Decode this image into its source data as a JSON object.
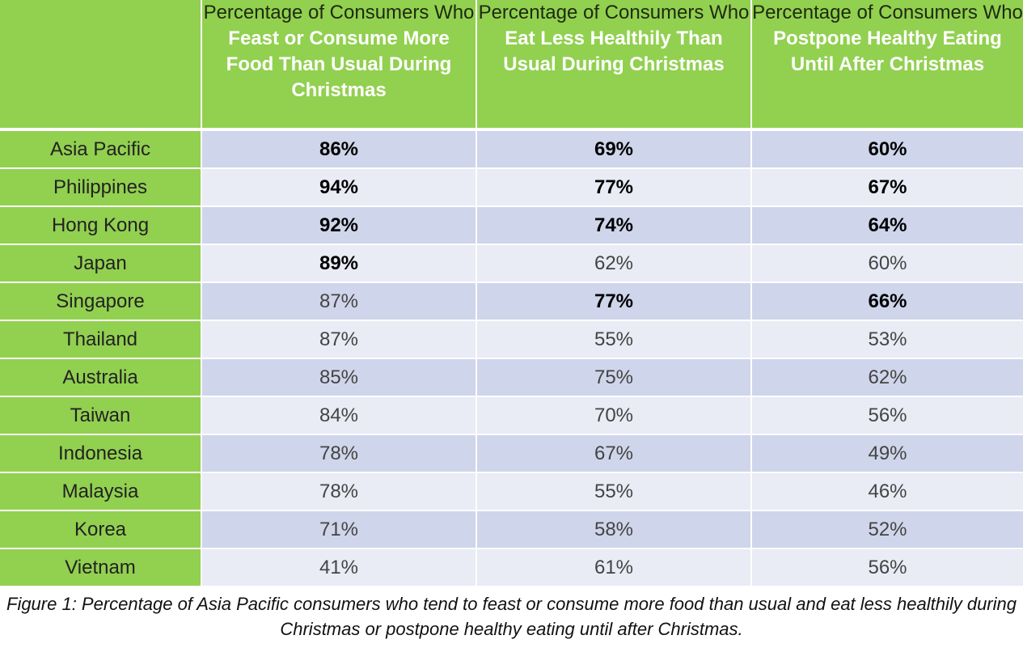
{
  "chart_data": {
    "type": "table",
    "columns": [
      {
        "prefix": "Percentage of Consumers Who",
        "label": "Feast or Consume More Food Than Usual During Christmas"
      },
      {
        "prefix": "Percentage of Consumers Who",
        "label": "Eat Less Healthily Than Usual During Christmas"
      },
      {
        "prefix": "Percentage of Consumers Who",
        "label": "Postpone Healthy Eating Until After Christmas"
      }
    ],
    "rows": [
      {
        "region": "Asia Pacific",
        "values": [
          "86%",
          "69%",
          "60%"
        ],
        "bold": [
          true,
          true,
          true
        ]
      },
      {
        "region": "Philippines",
        "values": [
          "94%",
          "77%",
          "67%"
        ],
        "bold": [
          true,
          true,
          true
        ]
      },
      {
        "region": "Hong Kong",
        "values": [
          "92%",
          "74%",
          "64%"
        ],
        "bold": [
          true,
          true,
          true
        ]
      },
      {
        "region": "Japan",
        "values": [
          "89%",
          "62%",
          "60%"
        ],
        "bold": [
          true,
          false,
          false
        ]
      },
      {
        "region": "Singapore",
        "values": [
          "87%",
          "77%",
          "66%"
        ],
        "bold": [
          false,
          true,
          true
        ]
      },
      {
        "region": "Thailand",
        "values": [
          "87%",
          "55%",
          "53%"
        ],
        "bold": [
          false,
          false,
          false
        ]
      },
      {
        "region": "Australia",
        "values": [
          "85%",
          "75%",
          "62%"
        ],
        "bold": [
          false,
          false,
          false
        ]
      },
      {
        "region": "Taiwan",
        "values": [
          "84%",
          "70%",
          "56%"
        ],
        "bold": [
          false,
          false,
          false
        ]
      },
      {
        "region": "Indonesia",
        "values": [
          "78%",
          "67%",
          "49%"
        ],
        "bold": [
          false,
          false,
          false
        ]
      },
      {
        "region": "Malaysia",
        "values": [
          "78%",
          "55%",
          "46%"
        ],
        "bold": [
          false,
          false,
          false
        ]
      },
      {
        "region": "Korea",
        "values": [
          "71%",
          "58%",
          "52%"
        ],
        "bold": [
          false,
          false,
          false
        ]
      },
      {
        "region": "Vietnam",
        "values": [
          "41%",
          "61%",
          "56%"
        ],
        "bold": [
          false,
          false,
          false
        ]
      }
    ],
    "caption": "Figure 1: Percentage of Asia Pacific consumers who tend to feast or consume more food than usual and eat less healthily during Christmas or postpone healthy eating until after Christmas.",
    "colors": {
      "header": "#92d050",
      "band_dark": "#cfd5ea",
      "band_light": "#e9ebf5"
    }
  }
}
